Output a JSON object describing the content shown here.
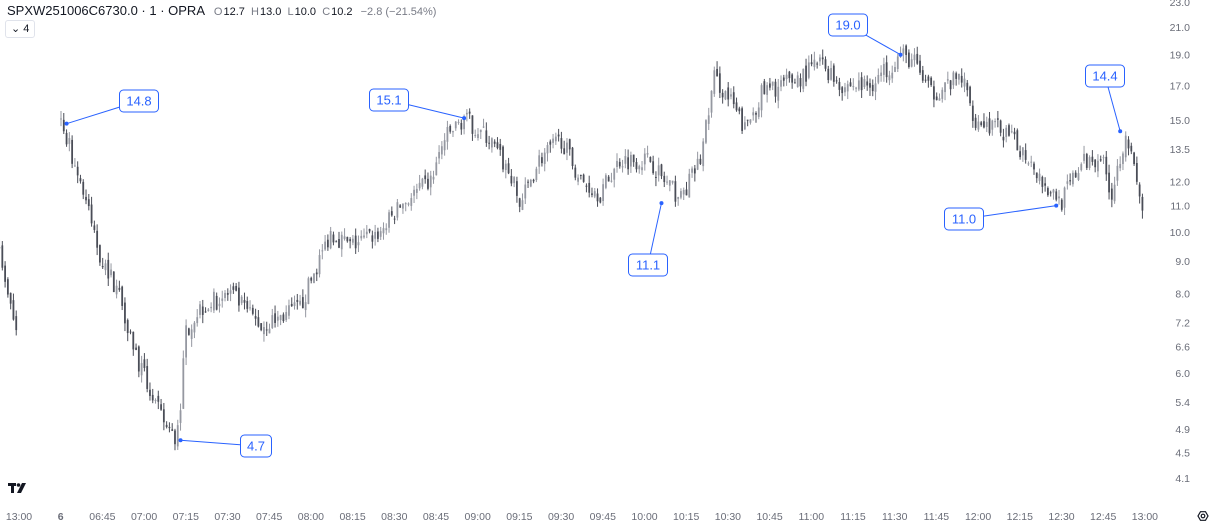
{
  "header": {
    "symbol": "SPXW251006C6730.0 · 1 · OPRA",
    "open_label": "O",
    "open": "12.7",
    "high_label": "H",
    "high": "13.0",
    "low_label": "L",
    "low": "10.0",
    "close_label": "C",
    "close": "10.2",
    "change": "−2.8 (−21.54%)",
    "indicator_toggle": "4",
    "toggle_icon": "chevron-down-icon"
  },
  "settings_icon": "gear-icon",
  "logo": "TV",
  "colors": {
    "up": "#9598a1",
    "down": "#4a4d57",
    "annotation": "#2962ff",
    "axis_text": "#6a6d78"
  },
  "chart_data": {
    "type": "candlestick",
    "title": "",
    "y_scale": "log",
    "ylim": [
      4.1,
      23.0
    ],
    "grid": false,
    "y_ticks": [
      "23.0",
      "21.0",
      "19.0",
      "17.0",
      "15.0",
      "13.5",
      "12.0",
      "11.0",
      "10.0",
      "9.0",
      "8.0",
      "7.2",
      "6.6",
      "6.0",
      "5.4",
      "4.9",
      "4.5",
      "4.1"
    ],
    "x_ticks": [
      "13:00",
      "6",
      "06:45",
      "07:00",
      "07:15",
      "07:30",
      "07:45",
      "08:00",
      "08:15",
      "08:30",
      "08:45",
      "09:00",
      "09:15",
      "09:30",
      "09:45",
      "10:00",
      "10:15",
      "10:30",
      "10:45",
      "11:00",
      "11:15",
      "11:30",
      "11:45",
      "12:00",
      "12:15",
      "12:30",
      "12:45",
      "13:00"
    ],
    "bar_interval": "1 minute",
    "previous_session_close_path": [
      [
        "12:53",
        9.8
      ],
      [
        "12:55",
        8.2
      ],
      [
        "12:57",
        7.6
      ],
      [
        "12:59",
        7.0
      ],
      [
        "13:00",
        6.9
      ]
    ],
    "close_path": [
      [
        "06:30",
        15.0
      ],
      [
        "06:37",
        12.0
      ],
      [
        "06:44",
        9.2
      ],
      [
        "06:51",
        8.0
      ],
      [
        "06:58",
        6.2
      ],
      [
        "07:06",
        5.1
      ],
      [
        "07:11",
        4.7
      ],
      [
        "07:13",
        5.4
      ],
      [
        "07:15",
        7.0
      ],
      [
        "07:20",
        7.6
      ],
      [
        "07:31",
        8.0
      ],
      [
        "07:42",
        7.1
      ],
      [
        "07:56",
        7.6
      ],
      [
        "08:07",
        10.0
      ],
      [
        "08:14",
        9.5
      ],
      [
        "08:25",
        10.0
      ],
      [
        "08:32",
        11.0
      ],
      [
        "08:43",
        12.0
      ],
      [
        "08:48",
        14.0
      ],
      [
        "08:55",
        15.1
      ],
      [
        "09:04",
        14.0
      ],
      [
        "09:12",
        12.2
      ],
      [
        "09:15",
        11.0
      ],
      [
        "09:22",
        13.0
      ],
      [
        "09:30",
        14.0
      ],
      [
        "09:37",
        12.0
      ],
      [
        "09:44",
        11.5
      ],
      [
        "09:51",
        13.0
      ],
      [
        "10:02",
        13.0
      ],
      [
        "10:07",
        12.0
      ],
      [
        "10:13",
        11.3
      ],
      [
        "10:20",
        13.0
      ],
      [
        "10:25",
        17.5
      ],
      [
        "10:31",
        16.0
      ],
      [
        "10:36",
        14.5
      ],
      [
        "10:42",
        16.5
      ],
      [
        "10:49",
        17.0
      ],
      [
        "10:56",
        17.5
      ],
      [
        "11:03",
        18.5
      ],
      [
        "11:11",
        17.0
      ],
      [
        "11:21",
        17.0
      ],
      [
        "11:32",
        19.0
      ],
      [
        "11:37",
        18.5
      ],
      [
        "11:43",
        16.5
      ],
      [
        "11:54",
        17.5
      ],
      [
        "11:59",
        15.0
      ],
      [
        "12:08",
        14.5
      ],
      [
        "12:19",
        13.0
      ],
      [
        "12:24",
        11.8
      ],
      [
        "12:30",
        11.2
      ],
      [
        "12:37",
        12.8
      ],
      [
        "12:44",
        13.2
      ],
      [
        "12:48",
        11.5
      ],
      [
        "12:53",
        14.4
      ],
      [
        "12:56",
        12.5
      ],
      [
        "13:00",
        10.2
      ]
    ],
    "annotations": [
      {
        "label": "14.8",
        "time": "06:32",
        "price": 14.8
      },
      {
        "label": "15.1",
        "time": "08:55",
        "price": 15.1
      },
      {
        "label": "19.0",
        "time": "11:32",
        "price": 19.0
      },
      {
        "label": "14.4",
        "time": "12:51",
        "price": 14.4
      },
      {
        "label": "11.0",
        "time": "12:28",
        "price": 11.0
      },
      {
        "label": "11.1",
        "time": "10:06",
        "price": 11.1
      },
      {
        "label": "4.7",
        "time": "07:13",
        "price": 4.7
      }
    ]
  }
}
